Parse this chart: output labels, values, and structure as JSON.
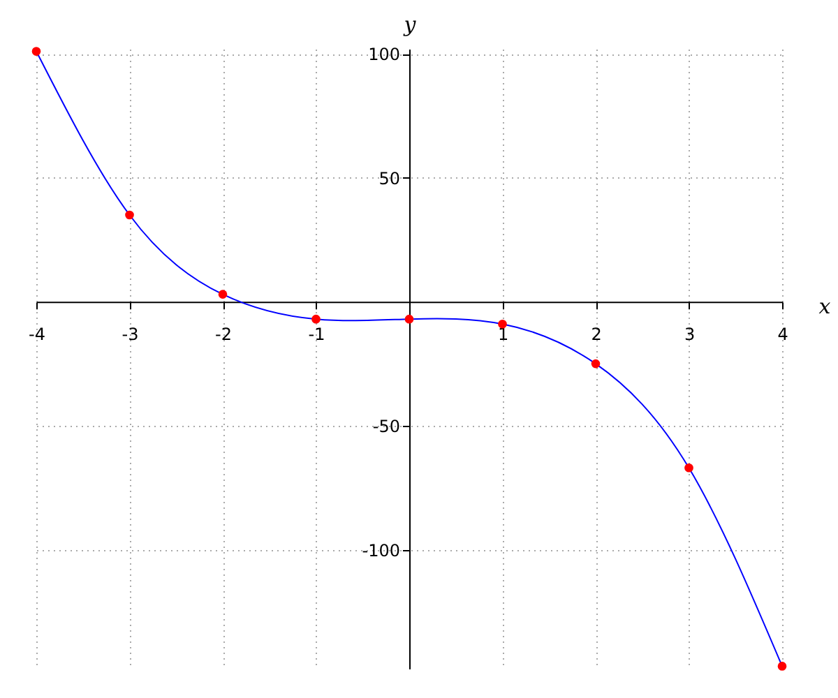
{
  "chart_data": {
    "type": "line",
    "xlabel": "x",
    "ylabel": "y",
    "x": [
      -4,
      -3,
      -2,
      -1,
      0,
      1,
      2,
      3,
      4
    ],
    "series": [
      {
        "color": "#0000ff",
        "line_style": "solid",
        "values": [
          101,
          35,
          3,
          -7,
          -7,
          -9,
          -25,
          -67,
          -147
        ]
      },
      {
        "type": "scatter",
        "color": "#ff0000",
        "marker": "circle",
        "values": [
          101,
          35,
          3,
          -7,
          -7,
          -9,
          -25,
          -67,
          -147
        ]
      }
    ],
    "xlim": [
      -4,
      4
    ],
    "ylim": [
      -148,
      102
    ],
    "xticks": [
      -4,
      -3,
      -2,
      -1,
      1,
      2,
      3,
      4
    ],
    "yticks": [
      -100,
      -50,
      50,
      100
    ],
    "grid": true
  }
}
